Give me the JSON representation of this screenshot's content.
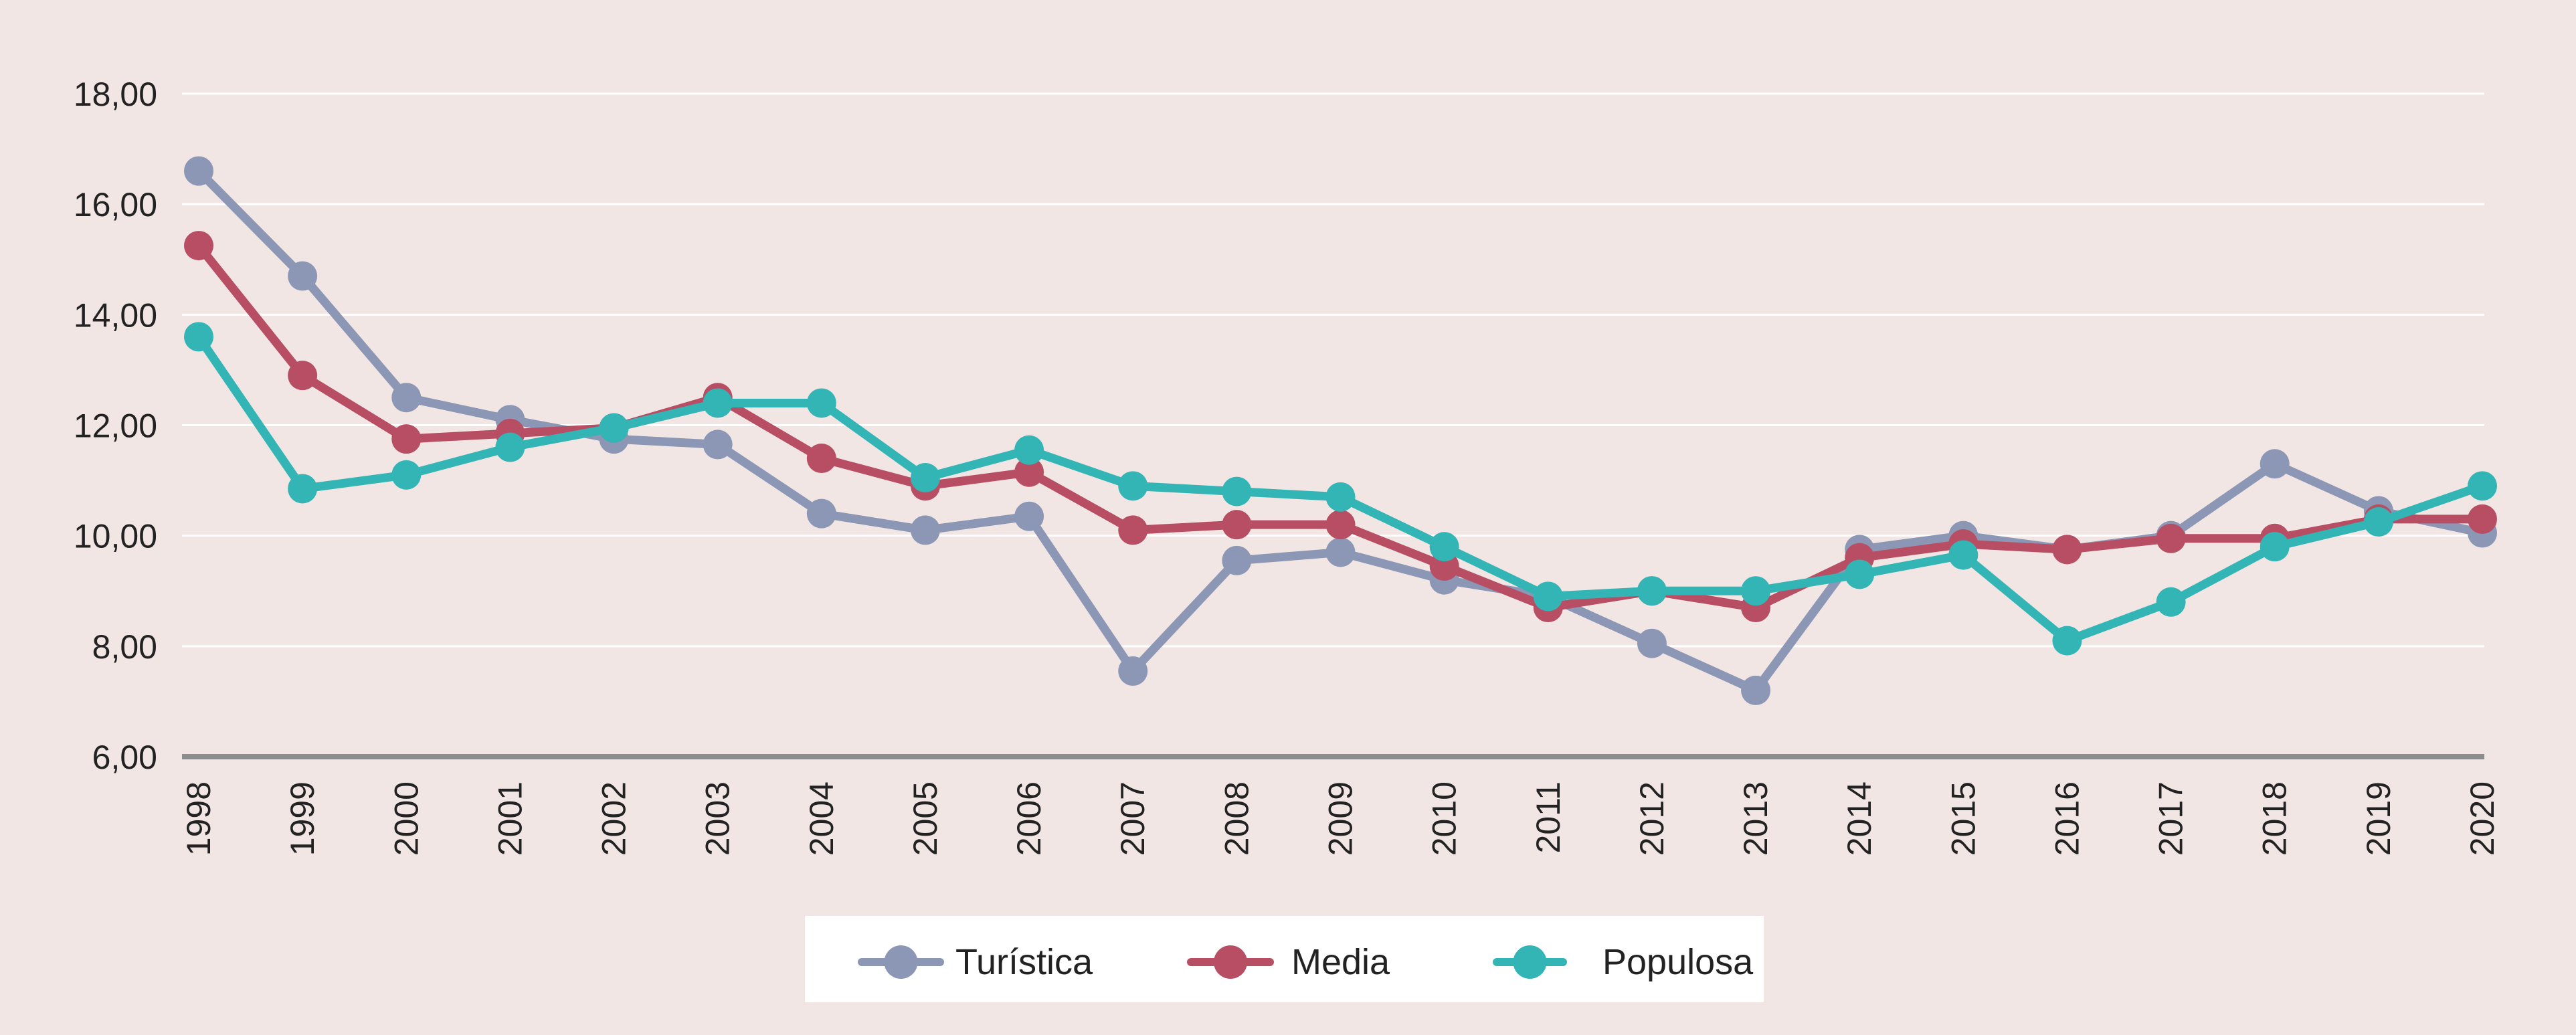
{
  "chart_data": {
    "type": "line",
    "title": "",
    "xlabel": "",
    "ylabel": "",
    "ylim": [
      6,
      18
    ],
    "y_ticks": [
      "6,00",
      "8,00",
      "10,00",
      "12,00",
      "14,00",
      "16,00",
      "18,00"
    ],
    "grid": "horizontal",
    "legend_position": "bottom-center",
    "categories": [
      "1998",
      "1999",
      "2000",
      "2001",
      "2002",
      "2003",
      "2004",
      "2005",
      "2006",
      "2007",
      "2008",
      "2009",
      "2010",
      "2011",
      "2012",
      "2013",
      "2014",
      "2015",
      "2016",
      "2017",
      "2018",
      "2019",
      "2020"
    ],
    "series": [
      {
        "name": "Turística",
        "color": "#8b97b4",
        "values": [
          16.6,
          14.7,
          12.5,
          12.1,
          11.75,
          11.65,
          10.4,
          10.1,
          10.35,
          7.55,
          9.55,
          9.7,
          9.2,
          8.9,
          8.05,
          7.2,
          9.75,
          10.0,
          9.75,
          10.0,
          11.3,
          10.45,
          10.05
        ]
      },
      {
        "name": "Media",
        "color": "#b84e64",
        "values": [
          15.25,
          12.9,
          11.75,
          11.85,
          11.95,
          12.5,
          11.4,
          10.9,
          11.15,
          10.1,
          10.2,
          10.2,
          9.45,
          8.7,
          9.0,
          8.7,
          9.6,
          9.85,
          9.75,
          9.95,
          9.95,
          10.3,
          10.3
        ]
      },
      {
        "name": "Populosa",
        "color": "#33b5b5",
        "values": [
          13.6,
          10.85,
          11.1,
          11.6,
          11.95,
          12.4,
          12.4,
          11.05,
          11.55,
          10.9,
          10.8,
          10.7,
          9.8,
          8.9,
          9.0,
          9.0,
          9.3,
          9.65,
          8.1,
          8.8,
          9.8,
          10.25,
          10.9
        ]
      }
    ]
  }
}
